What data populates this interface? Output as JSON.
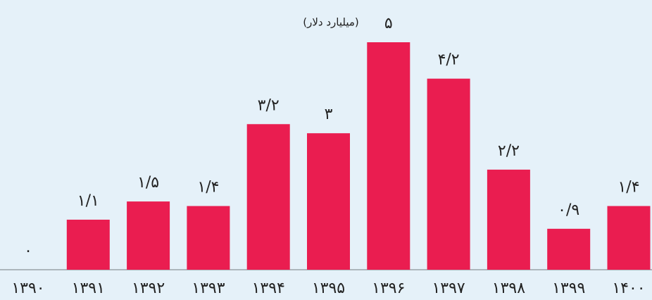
{
  "chart_data": {
    "type": "bar",
    "subtitle": "(میلیارد دلار)",
    "categories": [
      "۱۳۹۰",
      "۱۳۹۱",
      "۱۳۹۲",
      "۱۳۹۳",
      "۱۳۹۴",
      "۱۳۹۵",
      "۱۳۹۶",
      "۱۳۹۷",
      "۱۳۹۸",
      "۱۳۹۹",
      "۱۴۰۰"
    ],
    "values": [
      0,
      1.1,
      1.5,
      1.4,
      3.2,
      3,
      5,
      4.2,
      2.2,
      0.9,
      1.4
    ],
    "value_labels": [
      "۰",
      "۱/۱",
      "۱/۵",
      "۱/۴",
      "۳/۲",
      "۳",
      "۵",
      "۴/۲",
      "۲/۲",
      "۰/۹",
      "۱/۴"
    ],
    "color": "#ea1d50"
  }
}
